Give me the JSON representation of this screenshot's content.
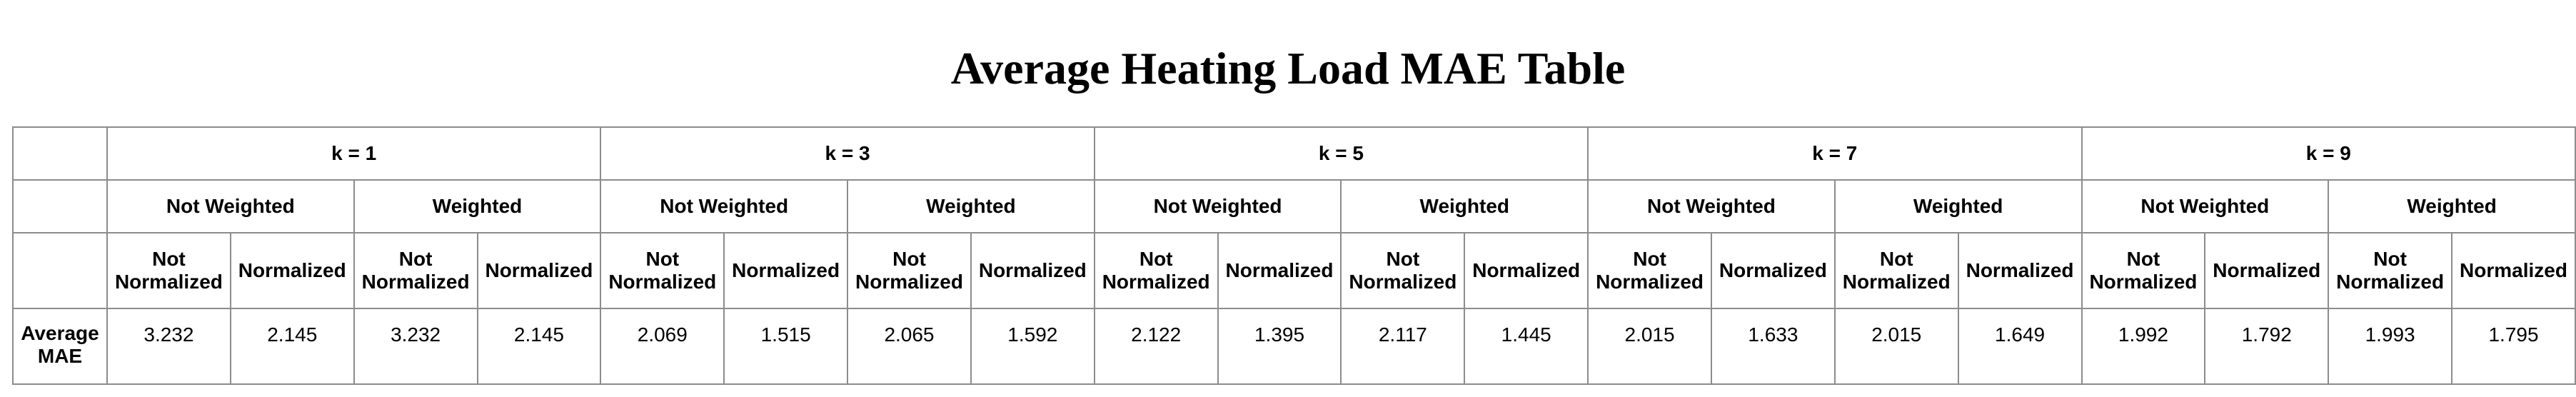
{
  "title": "Average Heating Load MAE Table",
  "table": {
    "k_headers": [
      "k = 1",
      "k = 3",
      "k = 5",
      "k = 7",
      "k = 9"
    ],
    "weight_headers": [
      "Not Weighted",
      "Weighted"
    ],
    "norm_headers": [
      "Not Normalized",
      "Normalized"
    ],
    "row_label": "Average MAE",
    "values": [
      "3.232",
      "2.145",
      "3.232",
      "2.145",
      "2.069",
      "1.515",
      "2.065",
      "1.592",
      "2.122",
      "1.395",
      "2.117",
      "1.445",
      "2.015",
      "1.633",
      "2.015",
      "1.649",
      "1.992",
      "1.792",
      "1.993",
      "1.795"
    ]
  }
}
